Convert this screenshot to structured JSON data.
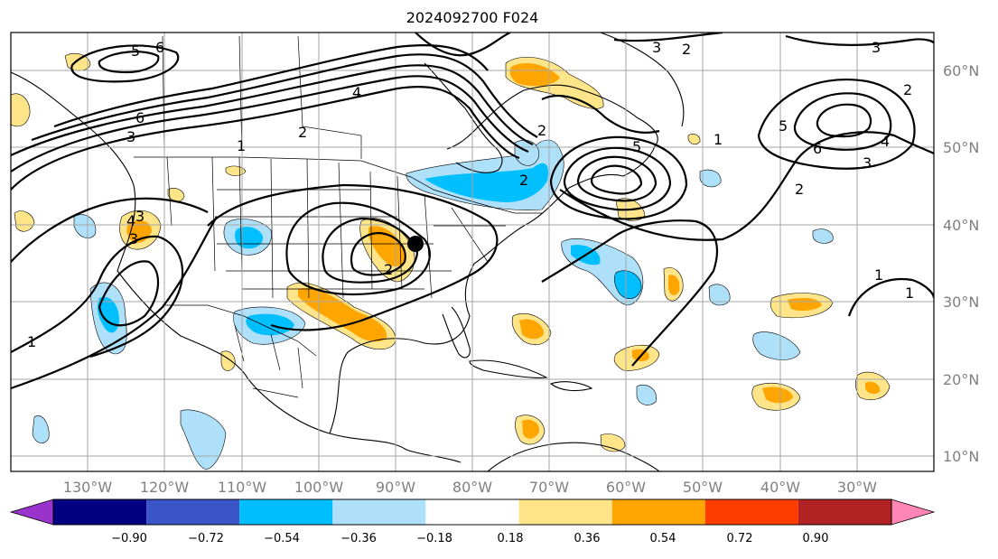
{
  "title": "2024092700 F024",
  "lat_labels": [
    "60°N",
    "50°N",
    "40°N",
    "30°N",
    "20°N",
    "10°N"
  ],
  "lon_labels": [
    "130°W",
    "120°W",
    "110°W",
    "100°W",
    "90°W",
    "80°W",
    "70°W",
    "60°W",
    "50°W",
    "40°W",
    "30°W"
  ],
  "colorbar": {
    "ticks": [
      "−0.90",
      "−0.72",
      "−0.54",
      "−0.36",
      "−0.18",
      "0.18",
      "0.36",
      "0.54",
      "0.72",
      "0.90"
    ],
    "colors": [
      "#9933cc",
      "#000080",
      "#3a55c8",
      "#00bfff",
      "#aee0fa",
      "#ffffff",
      "#ffe58a",
      "#ffa500",
      "#ff3c00",
      "#b22222",
      "#ff85b5"
    ]
  },
  "contour_labels": [
    "5",
    "6",
    "6",
    "4",
    "2",
    "3",
    "1",
    "2",
    "1",
    "3",
    "3",
    "2",
    "2",
    "5",
    "2",
    "3",
    "2",
    "4",
    "5",
    "6",
    "3",
    "4",
    "3",
    "2",
    "1",
    "1",
    "1"
  ],
  "marker": "black-dot"
}
